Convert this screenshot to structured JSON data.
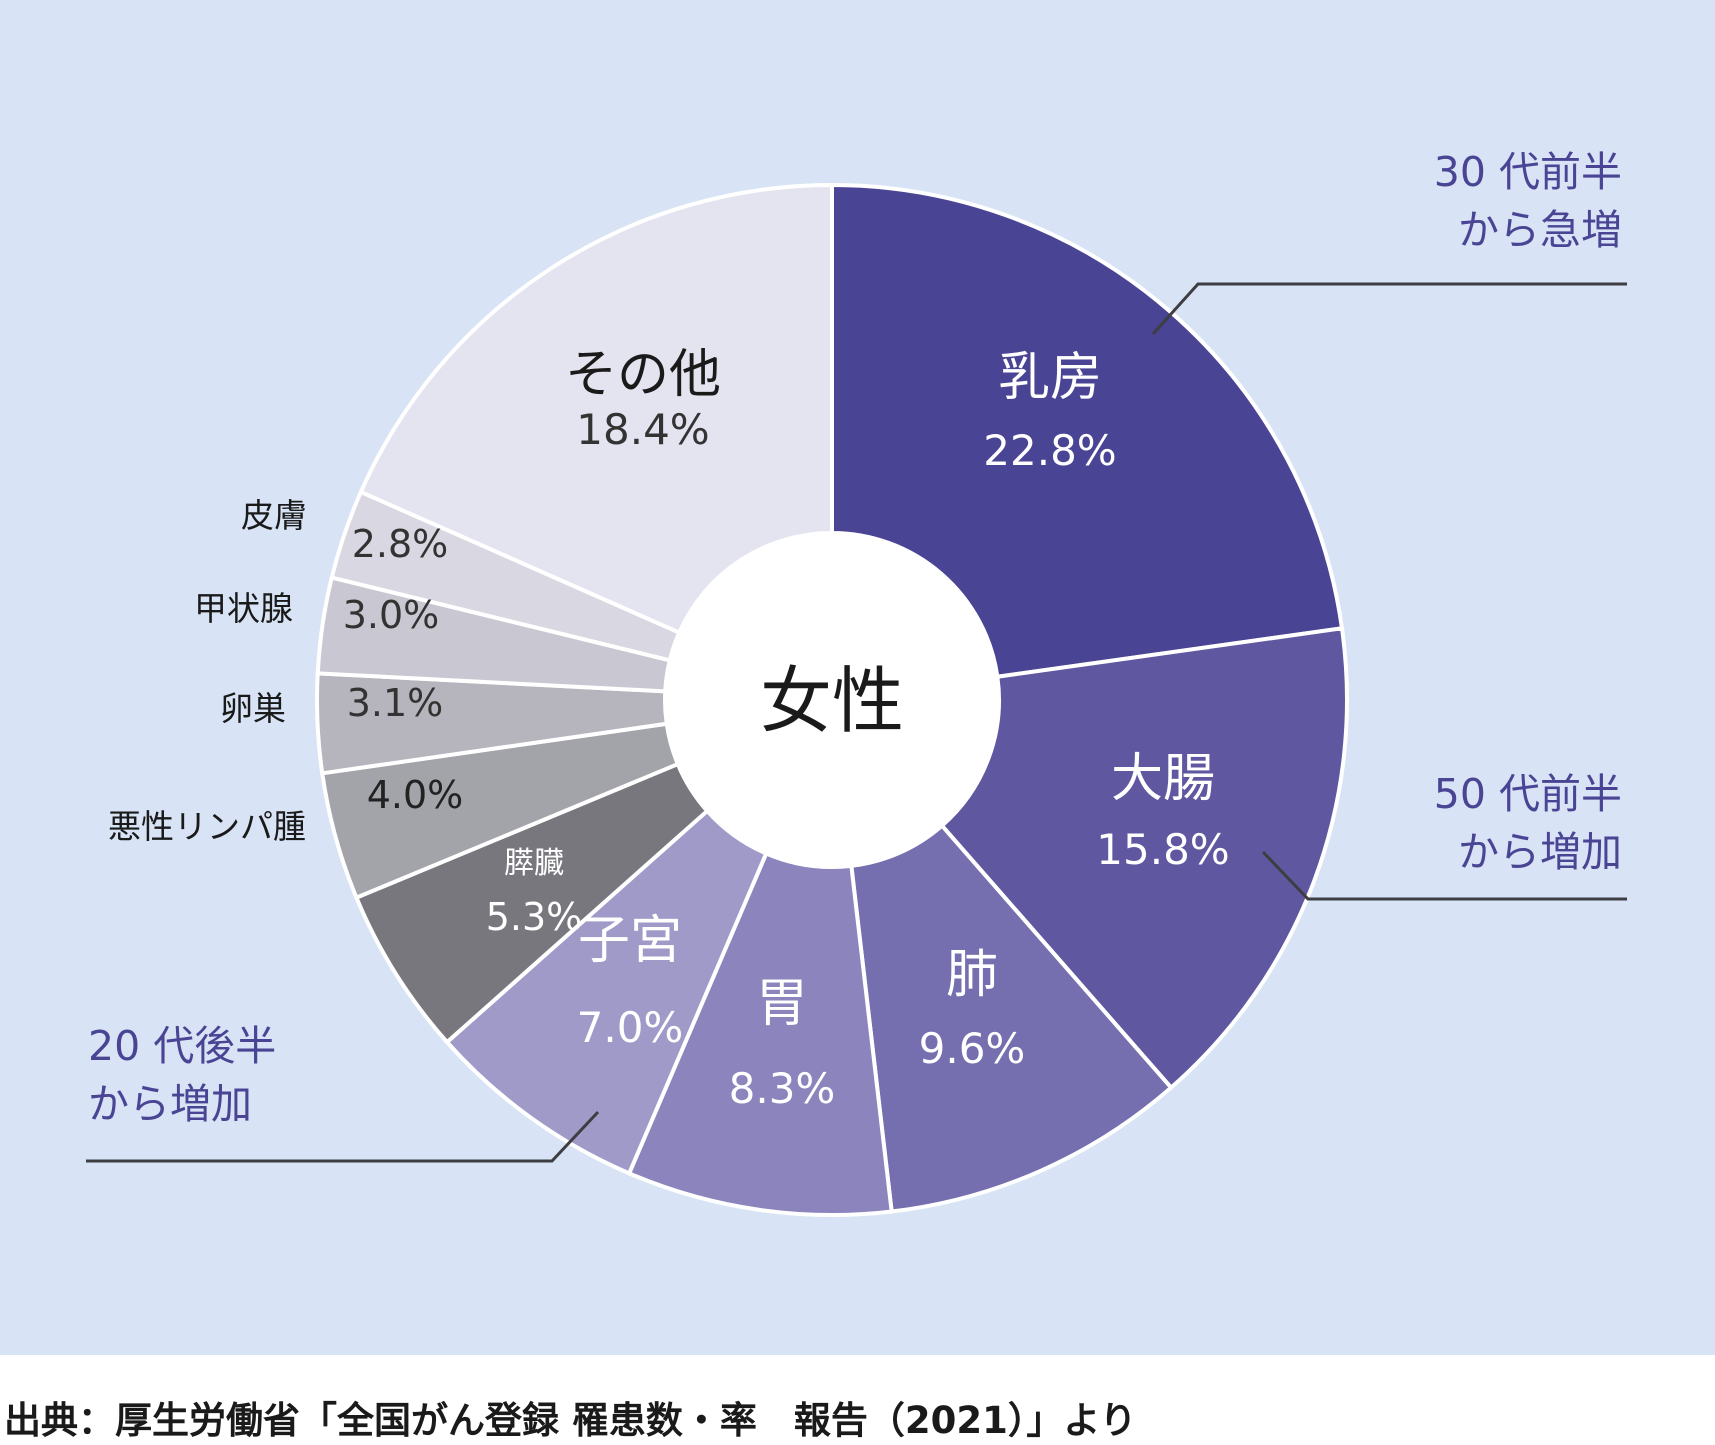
{
  "chart_data": {
    "type": "pie",
    "center_label": "女性",
    "slices": [
      {
        "label": "乳房",
        "value": 22.8,
        "value_label": "22.8%",
        "color": "#4a4494"
      },
      {
        "label": "大腸",
        "value": 15.8,
        "value_label": "15.8%",
        "color": "#5f58a0"
      },
      {
        "label": "肺",
        "value": 9.6,
        "value_label": "9.6%",
        "color": "#756eaf"
      },
      {
        "label": "胃",
        "value": 8.3,
        "value_label": "8.3%",
        "color": "#8b84bd"
      },
      {
        "label": "子宮",
        "value": 7.0,
        "value_label": "7.0%",
        "color": "#a09ac9"
      },
      {
        "label": "膵臓",
        "value": 5.3,
        "value_label": "5.3%",
        "color": "#78777e"
      },
      {
        "label": "悪性リンパ腫",
        "value": 4.0,
        "value_label": "4.0%",
        "color": "#a3a3aa"
      },
      {
        "label": "卵巣",
        "value": 3.1,
        "value_label": "3.1%",
        "color": "#b6b5bd"
      },
      {
        "label": "甲状腺",
        "value": 3.0,
        "value_label": "3.0%",
        "color": "#c9c8d2"
      },
      {
        "label": "皮膚",
        "value": 2.8,
        "value_label": "2.8%",
        "color": "#d9d8e2"
      },
      {
        "label": "その他",
        "value": 18.4,
        "value_label": "18.4%",
        "color": "#e4e3f0"
      }
    ],
    "annotations": [
      {
        "line1": "30 代前半",
        "line2": "から急増"
      },
      {
        "line1": "50 代前半",
        "line2": "から増加"
      },
      {
        "line1": "20 代後半",
        "line2": "から増加"
      }
    ]
  },
  "source": "出典：厚生労働省「全国がん登録 罹患数・率　報告（2021）」より"
}
